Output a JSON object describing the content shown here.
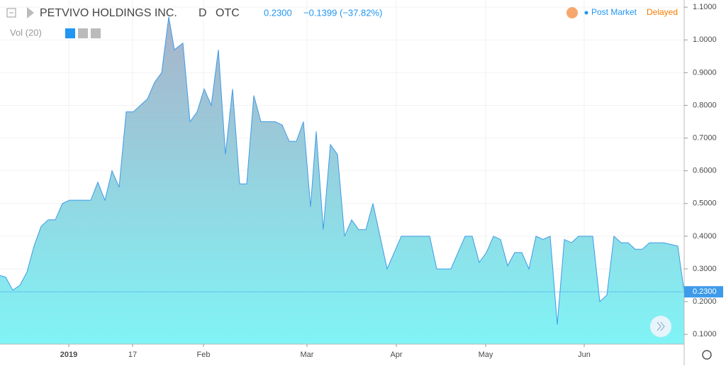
{
  "header": {
    "symbol": "PETVIVO HOLDINGS INC.",
    "interval": "D",
    "exchange": "OTC",
    "price": "0.2300",
    "change": "−0.1399 (−37.82%)",
    "session": "Post Market",
    "status": "Delayed",
    "indicator": "Vol (20)"
  },
  "chart_data": {
    "type": "area",
    "color": "#3d9be9",
    "fill_top": "#a9b2c9",
    "fill_bottom": "#80f4f6",
    "x": [
      0,
      0.8,
      1.8,
      2.8,
      3.8,
      4.8,
      5.8,
      6.8,
      7.8,
      8.8,
      9.8,
      10.8,
      11.8,
      12.8,
      13.8,
      14.8,
      15.8,
      16.8,
      17.8,
      18.8,
      19.8,
      20.8,
      21.8,
      22.8,
      23.8,
      24.6,
      25.8,
      26.8,
      27.8,
      28.8,
      29.8,
      30.8,
      31.8,
      32.8,
      33.8,
      34.8,
      35.8,
      36.8,
      37.8,
      38.8,
      39.8,
      40.8,
      41.8,
      42.8,
      43.8,
      44.6,
      45.6,
      46.6,
      47.6,
      48.6,
      49.6,
      50.6,
      51.6,
      52.6,
      54.6,
      55.6,
      56.6,
      57.6,
      58.6,
      59.6,
      60.6,
      61.6,
      63.6,
      65.6,
      66.6,
      67.6,
      68.6,
      69.6,
      70.6,
      71.6,
      72.6,
      73.6,
      74.6,
      75.6,
      76.6,
      77.6,
      78.6,
      79.6,
      80.6,
      81.6,
      82.6,
      83.6,
      84.6,
      85.6,
      86.6,
      87.6,
      88.6,
      89.6,
      90.6,
      91.6,
      92.6,
      93.6,
      94.6,
      95.6,
      96.5
    ],
    "values": [
      0.28,
      0.275,
      0.235,
      0.25,
      0.29,
      0.37,
      0.43,
      0.45,
      0.45,
      0.5,
      0.51,
      0.51,
      0.51,
      0.51,
      0.565,
      0.51,
      0.6,
      0.55,
      0.78,
      0.78,
      0.8,
      0.82,
      0.87,
      0.9,
      1.07,
      0.97,
      0.99,
      0.75,
      0.78,
      0.85,
      0.8,
      0.97,
      0.65,
      0.85,
      0.56,
      0.56,
      0.83,
      0.75,
      0.75,
      0.75,
      0.74,
      0.69,
      0.69,
      0.75,
      0.49,
      0.72,
      0.42,
      0.68,
      0.65,
      0.4,
      0.45,
      0.42,
      0.42,
      0.5,
      0.3,
      0.35,
      0.4,
      0.4,
      0.4,
      0.4,
      0.4,
      0.3,
      0.3,
      0.4,
      0.4,
      0.32,
      0.35,
      0.4,
      0.39,
      0.31,
      0.35,
      0.35,
      0.3,
      0.4,
      0.39,
      0.4,
      0.13,
      0.39,
      0.38,
      0.4,
      0.4,
      0.4,
      0.2,
      0.22,
      0.4,
      0.38,
      0.38,
      0.36,
      0.36,
      0.38,
      0.38,
      0.38,
      0.375,
      0.37,
      0.23
    ],
    "last_value_label": "0.2300",
    "xlim": [
      0,
      96.5
    ],
    "ylim": [
      0.07,
      1.122
    ],
    "xticks": [
      {
        "value": 9.7,
        "label": "2019"
      },
      {
        "value": 18.7,
        "label": "17"
      },
      {
        "value": 28.7,
        "label": "Feb"
      },
      {
        "value": 43.3,
        "label": "Mar"
      },
      {
        "value": 55.9,
        "label": "Apr"
      },
      {
        "value": 68.5,
        "label": "May"
      },
      {
        "value": 82.4,
        "label": "Jun"
      }
    ],
    "yticks": [
      {
        "value": 0.1,
        "label": "0.1000"
      },
      {
        "value": 0.2,
        "label": "0.2000"
      },
      {
        "value": 0.3,
        "label": "0.3000"
      },
      {
        "value": 0.4,
        "label": "0.4000"
      },
      {
        "value": 0.5,
        "label": "0.5000"
      },
      {
        "value": 0.6,
        "label": "0.6000"
      },
      {
        "value": 0.7,
        "label": "0.7000"
      },
      {
        "value": 0.8,
        "label": "0.8000"
      },
      {
        "value": 0.9,
        "label": "0.9000"
      },
      {
        "value": 1.0,
        "label": "1.0000"
      },
      {
        "value": 1.1,
        "label": "1.1000"
      }
    ],
    "grid": true
  }
}
